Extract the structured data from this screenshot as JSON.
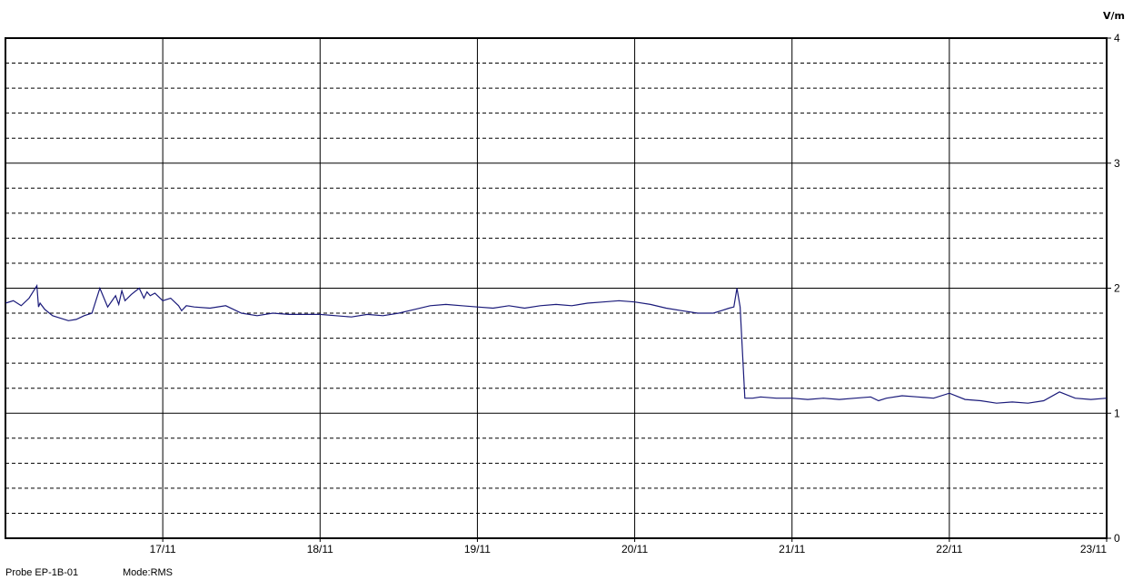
{
  "footer": {
    "probe": "Probe EP-1B-01",
    "mode": "Mode:RMS"
  },
  "chart_data": {
    "type": "line",
    "title": "",
    "xlabel": "",
    "ylabel": "V/m",
    "ylim": [
      0,
      4
    ],
    "yticks": [
      "0",
      "1",
      "2",
      "3",
      "4"
    ],
    "x_tick_labels": [
      "17/11",
      "18/11",
      "19/11",
      "20/11",
      "21/11",
      "22/11",
      "23/11"
    ],
    "x_range_days": [
      "16/11",
      "23/11"
    ],
    "grid": true,
    "legend": "none",
    "colors": {
      "line": "#1a1a7a",
      "grid_major": "#000000",
      "grid_minor": "#000000",
      "background": "#ffffff"
    },
    "series": [
      {
        "x": [
          0.0,
          0.05,
          0.1,
          0.15,
          0.2,
          0.21,
          0.22,
          0.25,
          0.3,
          0.35,
          0.4,
          0.45,
          0.5,
          0.55,
          0.6,
          0.65,
          0.7,
          0.72,
          0.74,
          0.76,
          0.8,
          0.85,
          0.88,
          0.9,
          0.92,
          0.95,
          1.0,
          1.05,
          1.1,
          1.12,
          1.15,
          1.2,
          1.3,
          1.4,
          1.5,
          1.6,
          1.7,
          1.8,
          1.9,
          2.0,
          2.1,
          2.2,
          2.3,
          2.4,
          2.5,
          2.6,
          2.7,
          2.8,
          2.9,
          3.0,
          3.1,
          3.2,
          3.3,
          3.4,
          3.5,
          3.6,
          3.7,
          3.8,
          3.9,
          4.0,
          4.1,
          4.2,
          4.3,
          4.4,
          4.5,
          4.55,
          4.6,
          4.63,
          4.65,
          4.67,
          4.7,
          4.75,
          4.8,
          4.9,
          5.0,
          5.1,
          5.2,
          5.3,
          5.4,
          5.5,
          5.55,
          5.6,
          5.7,
          5.8,
          5.9,
          6.0,
          6.1,
          6.2,
          6.3,
          6.4,
          6.5,
          6.6,
          6.7,
          6.8,
          6.9,
          7.0
        ],
        "y": [
          1.88,
          1.9,
          1.86,
          1.92,
          2.02,
          1.85,
          1.88,
          1.83,
          1.78,
          1.76,
          1.74,
          1.75,
          1.78,
          1.8,
          2.0,
          1.85,
          1.94,
          1.87,
          1.98,
          1.9,
          1.95,
          2.0,
          1.92,
          1.97,
          1.94,
          1.96,
          1.9,
          1.92,
          1.86,
          1.82,
          1.86,
          1.85,
          1.84,
          1.86,
          1.8,
          1.78,
          1.8,
          1.79,
          1.79,
          1.79,
          1.78,
          1.77,
          1.79,
          1.78,
          1.8,
          1.83,
          1.86,
          1.87,
          1.86,
          1.85,
          1.84,
          1.86,
          1.84,
          1.86,
          1.87,
          1.86,
          1.88,
          1.89,
          1.9,
          1.89,
          1.87,
          1.84,
          1.82,
          1.8,
          1.8,
          1.82,
          1.84,
          1.85,
          2.0,
          1.85,
          1.12,
          1.12,
          1.13,
          1.12,
          1.12,
          1.11,
          1.12,
          1.11,
          1.12,
          1.13,
          1.1,
          1.12,
          1.14,
          1.13,
          1.12,
          1.16,
          1.11,
          1.1,
          1.08,
          1.09,
          1.08,
          1.1,
          1.17,
          1.12,
          1.11,
          1.12
        ]
      }
    ]
  }
}
